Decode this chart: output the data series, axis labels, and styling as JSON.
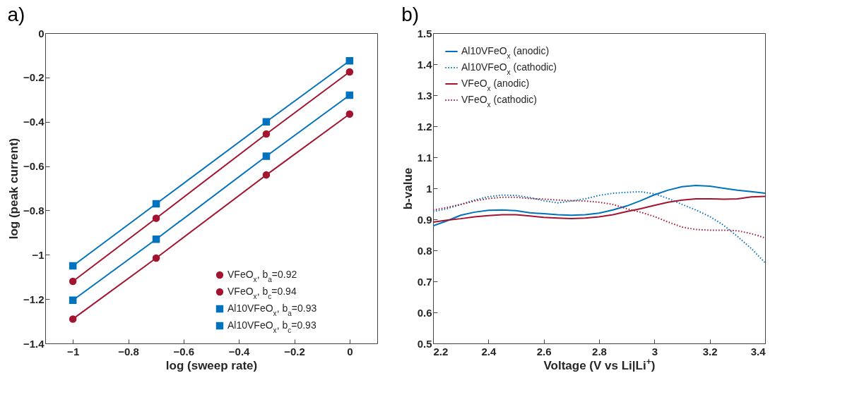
{
  "chart_data": [
    {
      "type": "line",
      "title": "a)",
      "xlabel": "log (sweep rate)",
      "ylabel": "log (peak current)",
      "x": [
        -1,
        -0.699,
        -0.301,
        0
      ],
      "series": [
        {
          "name": "VFeO$_{x}$, b$_{a}$=0.92",
          "color": "#a2142f",
          "marker": "circle",
          "values": [
            -1.29,
            -1.015,
            -0.64,
            -0.365
          ]
        },
        {
          "name": "VFeO$_{x}$, b$_{c}$=0.94",
          "color": "#a2142f",
          "marker": "circle",
          "values": [
            -1.12,
            -0.835,
            -0.455,
            -0.175
          ]
        },
        {
          "name": "Al10VFeO$_{x}$, b$_{a}$=0.93",
          "color": "#0072bd",
          "marker": "square",
          "values": [
            -1.205,
            -0.93,
            -0.555,
            -0.28
          ]
        },
        {
          "name": "Al10VFeO$_{x}$, b$_{c}$=0.93",
          "color": "#0072bd",
          "marker": "square",
          "values": [
            -1.05,
            -0.77,
            -0.4,
            -0.125
          ]
        }
      ],
      "xlim": [
        -1.1,
        0.1
      ],
      "xticks": [
        -1,
        -0.8,
        -0.6,
        -0.4,
        -0.2,
        0
      ],
      "ylim": [
        -1.4,
        0
      ],
      "yticks": [
        -1.4,
        -1.2,
        -1,
        -0.8,
        -0.6,
        -0.4,
        -0.2,
        0
      ],
      "grid": false,
      "legend": "bottom right"
    },
    {
      "type": "line",
      "title": "b)",
      "xlabel": "Voltage (V vs Li|Li$^{+}$)",
      "ylabel": "b-value",
      "x": [
        2.2,
        2.25,
        2.3,
        2.35,
        2.4,
        2.45,
        2.5,
        2.55,
        2.6,
        2.65,
        2.7,
        2.75,
        2.8,
        2.85,
        2.9,
        2.95,
        3.0,
        3.05,
        3.1,
        3.15,
        3.2,
        3.25,
        3.3,
        3.35,
        3.4
      ],
      "series": [
        {
          "name": "Al10VFeO$_{x}$ (anodic)",
          "color": "#0072bd",
          "line_style": "solid",
          "values": [
            0.879,
            0.895,
            0.913,
            0.923,
            0.929,
            0.93,
            0.928,
            0.921,
            0.918,
            0.915,
            0.913,
            0.915,
            0.92,
            0.93,
            0.943,
            0.96,
            0.979,
            0.994,
            1.005,
            1.009,
            1.007,
            1.0,
            0.994,
            0.989,
            0.984
          ]
        },
        {
          "name": "Al10VFeO$_{x}$ (cathodic)",
          "color": "#0072bd",
          "line_style": "dotted",
          "values": [
            0.925,
            0.934,
            0.948,
            0.962,
            0.973,
            0.978,
            0.977,
            0.97,
            0.96,
            0.953,
            0.959,
            0.966,
            0.977,
            0.984,
            0.987,
            0.989,
            0.982,
            0.967,
            0.948,
            0.93,
            0.909,
            0.881,
            0.845,
            0.806,
            0.76
          ]
        },
        {
          "name": "VFeO$_{x}$ (anodic)",
          "color": "#a2142f",
          "line_style": "solid",
          "values": [
            0.891,
            0.897,
            0.902,
            0.908,
            0.912,
            0.915,
            0.915,
            0.911,
            0.906,
            0.904,
            0.902,
            0.904,
            0.908,
            0.915,
            0.925,
            0.934,
            0.945,
            0.955,
            0.962,
            0.966,
            0.966,
            0.965,
            0.966,
            0.972,
            0.974
          ]
        },
        {
          "name": "VFeO$_{x}$ (cathodic)",
          "color": "#a2142f",
          "line_style": "dotted",
          "values": [
            0.93,
            0.938,
            0.948,
            0.959,
            0.967,
            0.971,
            0.971,
            0.967,
            0.965,
            0.962,
            0.96,
            0.959,
            0.955,
            0.948,
            0.934,
            0.923,
            0.909,
            0.891,
            0.875,
            0.867,
            0.865,
            0.865,
            0.863,
            0.854,
            0.84
          ]
        }
      ],
      "xlim": [
        2.2,
        3.4
      ],
      "xticks": [
        2.2,
        2.4,
        2.6,
        2.8,
        3,
        3.2,
        3.4
      ],
      "ylim": [
        0.5,
        1.5
      ],
      "yticks": [
        0.5,
        0.6,
        0.7,
        0.8,
        0.9,
        1,
        1.1,
        1.2,
        1.3,
        1.4,
        1.5
      ],
      "grid": false,
      "legend": "top left"
    }
  ]
}
